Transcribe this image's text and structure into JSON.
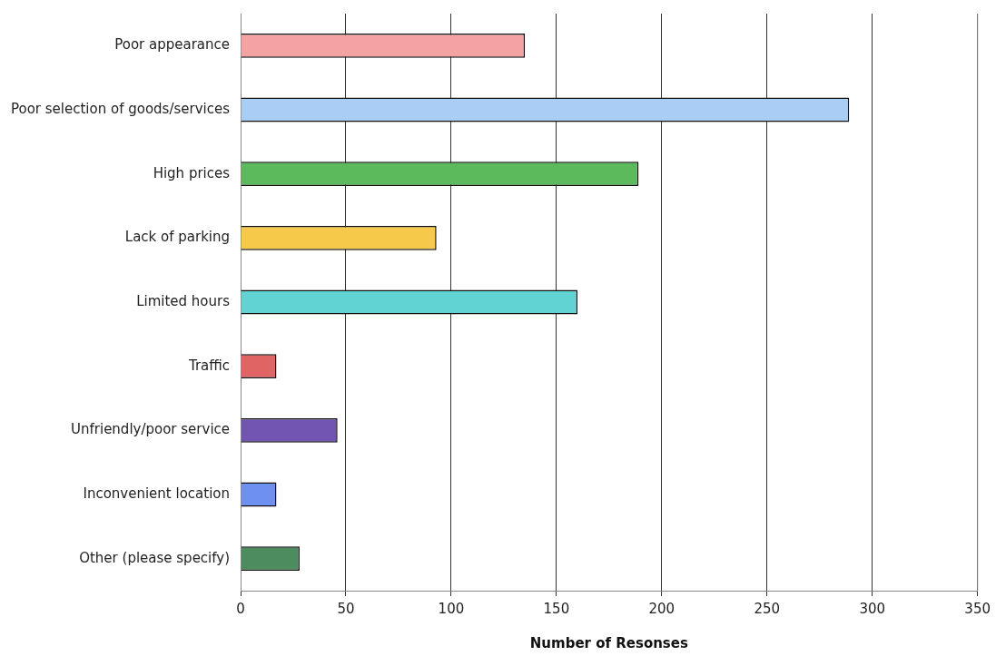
{
  "chart_data": {
    "type": "bar",
    "orientation": "horizontal",
    "xlabel": "Number of Resonses",
    "categories": [
      "Poor appearance",
      "Poor selection of goods/services",
      "High prices",
      "Lack of parking",
      "Limited hours",
      "Traffic",
      "Unfriendly/poor service",
      "Inconvenient location",
      "Other (please specify)"
    ],
    "values": [
      135,
      289,
      189,
      93,
      160,
      17,
      46,
      17,
      28
    ],
    "colors": [
      "#f4a3a3",
      "#a9cdf5",
      "#5cba5c",
      "#f7c94a",
      "#62d3d3",
      "#e06464",
      "#7255b3",
      "#6e90f0",
      "#4d8c5e"
    ],
    "xlim": [
      0,
      350
    ],
    "xticks": [
      0,
      50,
      100,
      150,
      200,
      250,
      300,
      350
    ],
    "grid": "x",
    "legend": false
  }
}
